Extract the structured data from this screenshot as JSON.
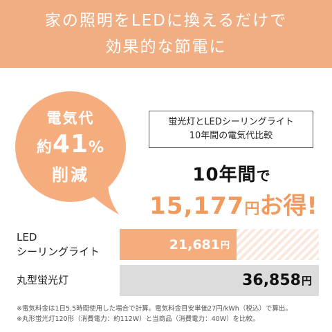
{
  "banner": {
    "line1": "家の照明をLEDに換えるだけで",
    "line2": "効果的な節電に"
  },
  "badge": {
    "line1": "電気代",
    "line2_prefix": "約",
    "line2_number": "41",
    "line2_suffix": "%",
    "line3": "削減",
    "color": "#f6ad7e"
  },
  "comparison_box": {
    "line1": "蛍光灯とLEDシーリングライト",
    "line2": "10年間の電気代比較"
  },
  "headline": {
    "years_number": "10",
    "years_word": "年間",
    "years_particle": "で",
    "savings_amount": "15,177",
    "savings_unit": "円",
    "savings_suffix": "お得!"
  },
  "rows": {
    "led": {
      "label_line1": "LED",
      "label_line2": "シーリングライト",
      "value": "21,681",
      "unit": "円",
      "fraction_of_max": 0.588
    },
    "fluorescent": {
      "label": "丸型蛍光灯",
      "value": "36,858",
      "unit": "円",
      "fraction_of_max": 1.0
    }
  },
  "notes": {
    "line1": "※電気料金は1日5.5時間使用した場合で計算。電気料金目安単価27円/kWh（税込）で算出。",
    "line2": "※丸形蛍光灯120形（消費電力：約112W）と当商品（消費電力：40W）を比較。"
  },
  "colors": {
    "accent": "#f6ad7e",
    "banner": "#f2ae83",
    "savings_text": "#f09a5e",
    "fluorescent_bar": "#dcdcdc"
  }
}
